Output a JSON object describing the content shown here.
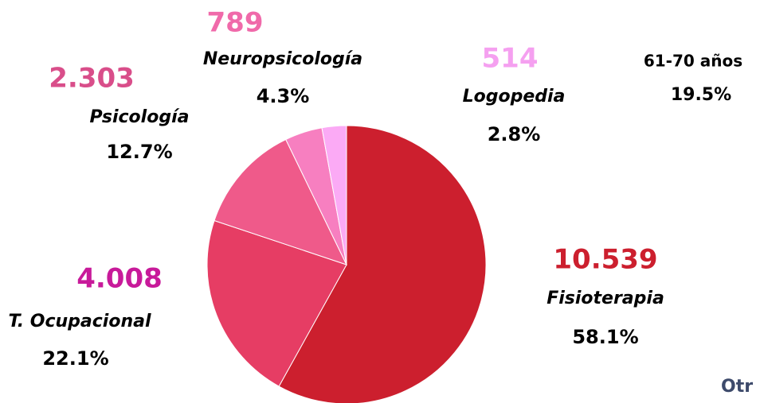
{
  "chart_data": {
    "type": "pie",
    "categories": [
      "Fisioterapia",
      "T. Ocupacional",
      "Psicología",
      "Neuropsicología",
      "Logopedia"
    ],
    "values": [
      10539,
      4008,
      2303,
      789,
      514
    ],
    "value_labels": [
      "10.539",
      "4.008",
      "2.303",
      "789",
      "514"
    ],
    "shares": [
      58.1,
      22.1,
      12.7,
      4.3,
      2.8
    ],
    "share_labels": [
      "58.1%",
      "22.1%",
      "12.7%",
      "4.3%",
      "2.8%"
    ],
    "colors": [
      "#cc1f2e",
      "#e63d64",
      "#ef5a8a",
      "#f77fc0",
      "#fbaaf5"
    ],
    "label_colors": [
      "#cc1f2e",
      "#c81a9a",
      "#d94e8a",
      "#f06aaa",
      "#f5a0f0"
    ],
    "annotations": [
      "61-70 años",
      "19.5%",
      "Otr"
    ]
  }
}
